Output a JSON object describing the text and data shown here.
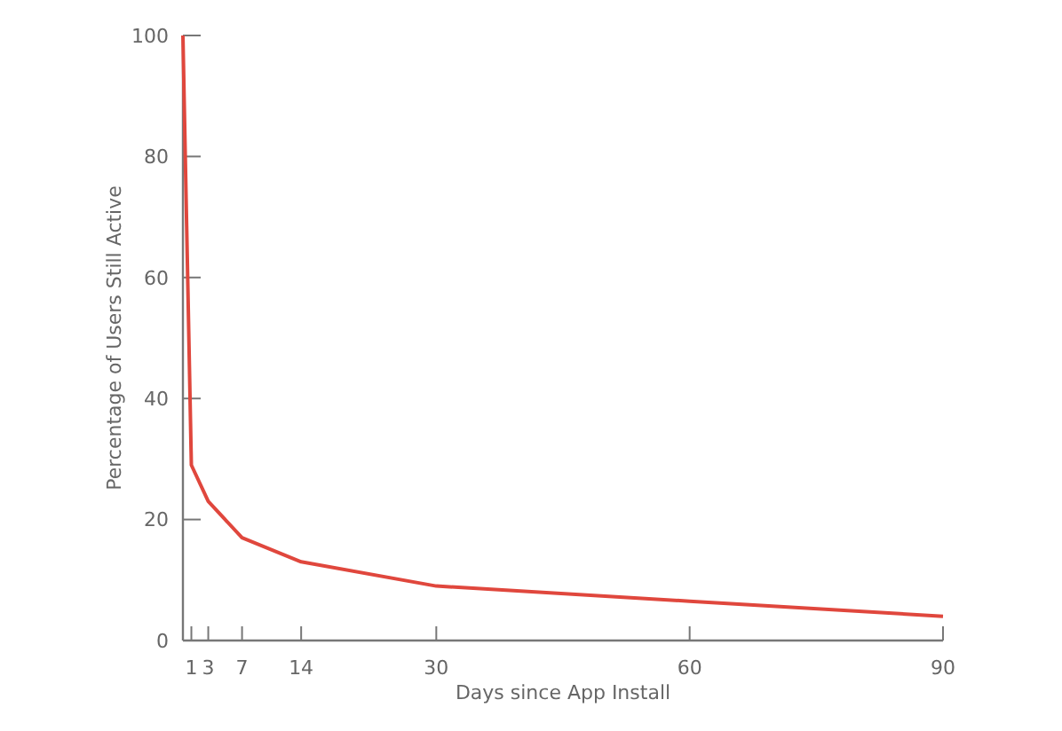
{
  "chart_data": {
    "type": "line",
    "xlabel": "Days since App Install",
    "ylabel": "Percentage of Users Still Active",
    "x": [
      0,
      1,
      3,
      7,
      14,
      30,
      60,
      90
    ],
    "series": [
      {
        "color": "#e0473d",
        "values": [
          100,
          29,
          23,
          17,
          13,
          9,
          6.5,
          4
        ]
      }
    ],
    "xlim": [
      0,
      90
    ],
    "xticks": [
      1,
      3,
      7,
      14,
      30,
      60,
      90
    ],
    "ylim": [
      0,
      100
    ],
    "yticks": [
      0,
      20,
      40,
      60,
      80,
      100
    ],
    "grid": false,
    "marker": "none",
    "line_style": "solid"
  }
}
